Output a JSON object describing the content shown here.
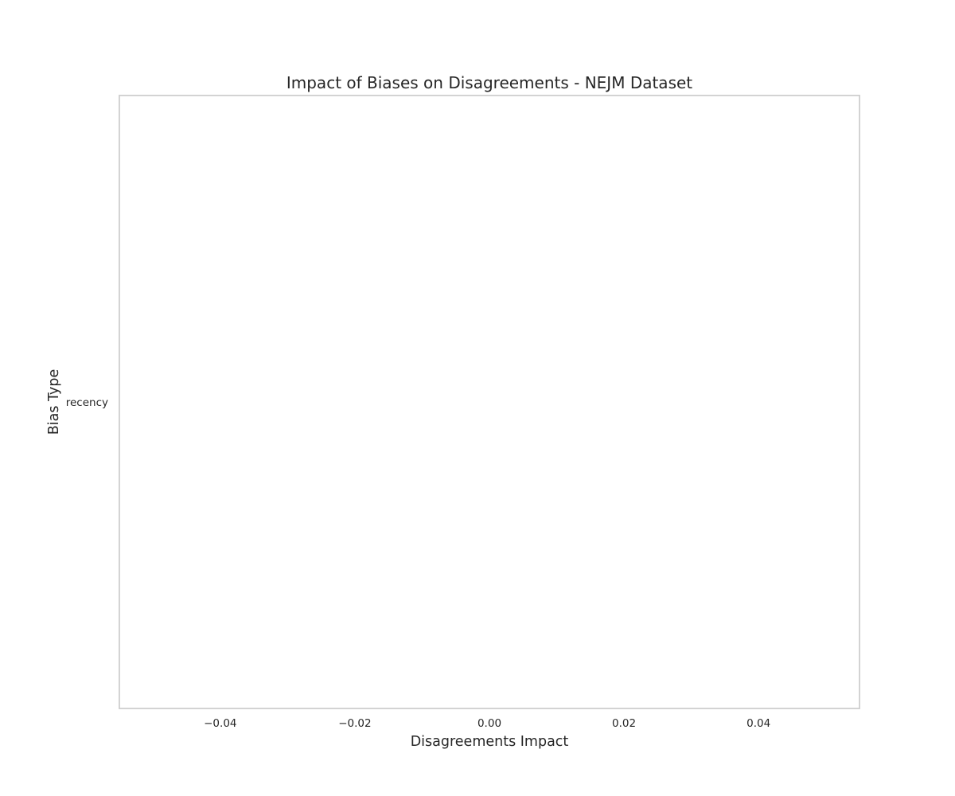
{
  "chart_data": {
    "type": "bar",
    "orientation": "horizontal",
    "title": "Impact of Biases on Disagreements - NEJM Dataset",
    "xlabel": "Disagreements Impact",
    "ylabel": "Bias Type",
    "categories": [
      "recency"
    ],
    "values": [
      0.0
    ],
    "xlim": [
      -0.055,
      0.055
    ],
    "xticks": [
      -0.04,
      -0.02,
      0.0,
      0.02,
      0.04
    ],
    "xtick_labels": [
      "−0.04",
      "−0.02",
      "0.00",
      "0.02",
      "0.04"
    ],
    "reference_line": 0.0,
    "grid": true,
    "legend": "none"
  }
}
